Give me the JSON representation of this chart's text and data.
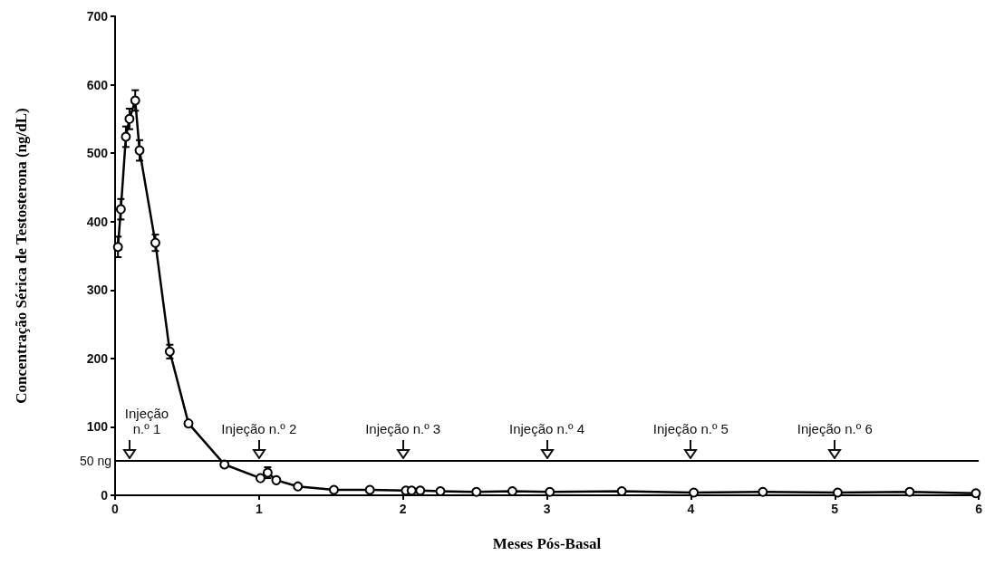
{
  "chart_data": {
    "type": "line",
    "xlabel": "Meses Pós-Basal",
    "ylabel": "Concentração Sérica de Testosterona (ng/dL)",
    "x": [
      0.02,
      0.04,
      0.075,
      0.1,
      0.14,
      0.17,
      0.28,
      0.38,
      0.51,
      0.76,
      1.01,
      1.06,
      1.12,
      1.27,
      1.52,
      1.77,
      2.02,
      2.06,
      2.12,
      2.26,
      2.51,
      2.76,
      3.02,
      3.52,
      4.02,
      4.5,
      5.02,
      5.52,
      5.98
    ],
    "series": [
      {
        "color": "#000000",
        "values": [
          363,
          418,
          524,
          550,
          577,
          504,
          369,
          210,
          105,
          45,
          25,
          33,
          22,
          13,
          8,
          8,
          7,
          7,
          7,
          6,
          5,
          6,
          5,
          6,
          4,
          5,
          4,
          5,
          3
        ],
        "errors": [
          15,
          15,
          15,
          15,
          15,
          15,
          12,
          10,
          null,
          null,
          null,
          8,
          null,
          null,
          null,
          null,
          null,
          null,
          null,
          null,
          null,
          null,
          null,
          null,
          null,
          null,
          null,
          null,
          null
        ]
      }
    ],
    "xlim": [
      0,
      6
    ],
    "xticks": [
      0,
      1,
      2,
      3,
      4,
      5,
      6
    ],
    "ylim": [
      0,
      700
    ],
    "yticks": [
      0,
      100,
      200,
      300,
      400,
      500,
      600,
      700
    ],
    "ref_lines": [
      {
        "axis": "y",
        "value": 50,
        "label": "50 ng",
        "color": "#000000"
      }
    ],
    "annotations": [
      {
        "text": "Injeção n.º 1",
        "x": 0.1,
        "y": 50
      },
      {
        "text": "Injeção n.º 2",
        "x": 1,
        "y": 50
      },
      {
        "text": "Injeção n.º 3",
        "x": 2,
        "y": 50
      },
      {
        "text": "Injeção n.º 4",
        "x": 3,
        "y": 50
      },
      {
        "text": "Injeção n.º 5",
        "x": 4,
        "y": 50
      },
      {
        "text": "Injeção n.º 6",
        "x": 5,
        "y": 50
      }
    ],
    "grid": false,
    "marker": "circle",
    "line_style": "solid"
  }
}
